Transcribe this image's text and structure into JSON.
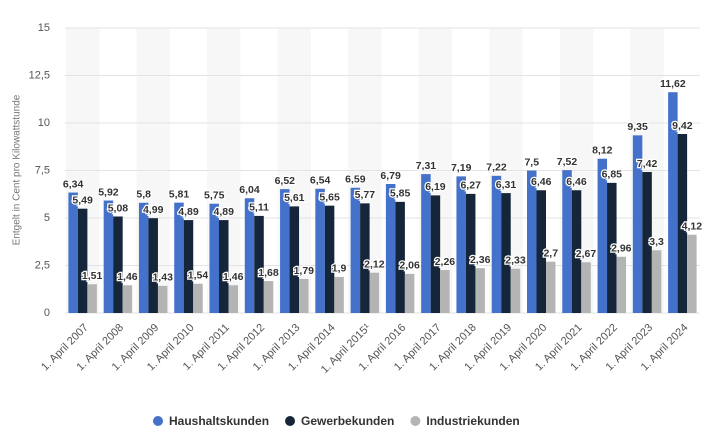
{
  "chart_data": {
    "type": "bar",
    "y_label": "Entgelt in Cent pro Kilowattstunde",
    "categories": [
      "1. April 2007",
      "1. April 2008",
      "1. April 2009",
      "1. April 2010",
      "1. April 2011",
      "1. April 2012",
      "1. April 2013",
      "1. April 2014",
      "1. April 2015¹",
      "1. April 2016",
      "1. April 2017",
      "1. April 2018",
      "1. April 2019",
      "1. April 2020",
      "1. April 2021",
      "1. April 2022",
      "1. April 2023",
      "1. April 2024"
    ],
    "series": [
      {
        "name": "Haushaltskunden",
        "color": "#4472ca",
        "values": [
          6.34,
          5.92,
          5.8,
          5.81,
          5.75,
          6.04,
          6.52,
          6.54,
          6.59,
          6.79,
          7.31,
          7.19,
          7.22,
          7.5,
          7.52,
          8.12,
          9.35,
          11.62
        ],
        "value_labels": [
          "6,34",
          "5,92",
          "5,8",
          "5,81",
          "5,75",
          "6,04",
          "6,52",
          "6,54",
          "6,59",
          "6,79",
          "7,31",
          "7,19",
          "7,22",
          "7,5",
          "7,52",
          "8,12",
          "9,35",
          "11,62"
        ]
      },
      {
        "name": "Gewerbekunden",
        "color": "#15263a",
        "values": [
          5.49,
          5.08,
          4.99,
          4.89,
          4.89,
          5.11,
          5.61,
          5.65,
          5.77,
          5.85,
          6.19,
          6.27,
          6.31,
          6.46,
          6.46,
          6.85,
          7.42,
          9.42
        ],
        "value_labels": [
          "5,49",
          "5,08",
          "4,99",
          "4,89",
          "4,89",
          "5,11",
          "5,61",
          "5,65",
          "5,77",
          "5,85",
          "6,19",
          "6,27",
          "6,31",
          "6,46",
          "6,46",
          "6,85",
          "7,42",
          "9,42"
        ]
      },
      {
        "name": "Industriekunden",
        "color": "#b4b4b4",
        "values": [
          1.51,
          1.46,
          1.43,
          1.54,
          1.46,
          1.68,
          1.79,
          1.9,
          2.12,
          2.06,
          2.26,
          2.36,
          2.33,
          2.7,
          2.67,
          2.96,
          3.3,
          4.12
        ],
        "value_labels": [
          "1,51",
          "1,46",
          "1,43",
          "1,54",
          "1,46",
          "1,68",
          "1,79",
          "1,9",
          "2,12",
          "2,06",
          "2,26",
          "2,36",
          "2,33",
          "2,7",
          "2,67",
          "2,96",
          "3,3",
          "4,12"
        ]
      }
    ],
    "ylim": [
      0,
      15
    ],
    "yticks": [
      0,
      {
        "value": 2.5,
        "label": "2,5"
      },
      5,
      {
        "value": 7.5,
        "label": "7,5"
      },
      10,
      {
        "value": 12.5,
        "label": "12,5"
      },
      15
    ],
    "grid": true,
    "legend": "bottom"
  }
}
